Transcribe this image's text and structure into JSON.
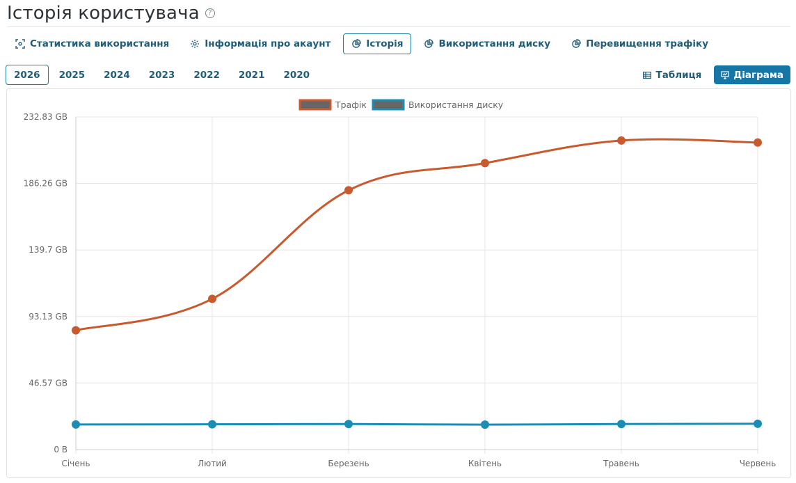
{
  "page": {
    "title": "Історія користувача",
    "help_icon": "?"
  },
  "tabs": [
    {
      "label": "Статистика використання",
      "icon": "stats-icon",
      "active": false
    },
    {
      "label": "Інформація про акаунт",
      "icon": "gear-icon",
      "active": false
    },
    {
      "label": "Історія",
      "icon": "pie-chart-icon",
      "active": true
    },
    {
      "label": "Використання диску",
      "icon": "pie-chart-icon",
      "active": false
    },
    {
      "label": "Перевищення трафіку",
      "icon": "pie-chart-icon",
      "active": false
    }
  ],
  "years": [
    {
      "label": "2026",
      "active": true
    },
    {
      "label": "2025",
      "active": false
    },
    {
      "label": "2024",
      "active": false
    },
    {
      "label": "2023",
      "active": false
    },
    {
      "label": "2022",
      "active": false
    },
    {
      "label": "2021",
      "active": false
    },
    {
      "label": "2020",
      "active": false
    }
  ],
  "view": {
    "table_label": "Таблиця",
    "chart_label": "Діаграма",
    "active": "chart"
  },
  "colors": {
    "accent": "#1677a6",
    "traffic": "#c85a2e",
    "disk": "#1a8db5",
    "grid": "#e5e5e5",
    "axis_text": "#666666"
  },
  "chart_data": {
    "type": "line",
    "categories": [
      "Січень",
      "Лютий",
      "Березень",
      "Квітень",
      "Травень",
      "Червень"
    ],
    "y_ticks": [
      "0 B",
      "46.57 GB",
      "93.13 GB",
      "139.7 GB",
      "186.26 GB",
      "232.83 GB"
    ],
    "ylim": [
      0,
      232.83
    ],
    "grid": true,
    "legend_position": "top-center",
    "series": [
      {
        "name": "Трафік",
        "color": "#c85a2e",
        "values": [
          83.5,
          105.5,
          181.5,
          200.5,
          216.3,
          214.9
        ]
      },
      {
        "name": "Використання диску",
        "color": "#1a8db5",
        "values": [
          17.6,
          17.7,
          17.9,
          17.5,
          17.9,
          18.1
        ]
      }
    ]
  }
}
